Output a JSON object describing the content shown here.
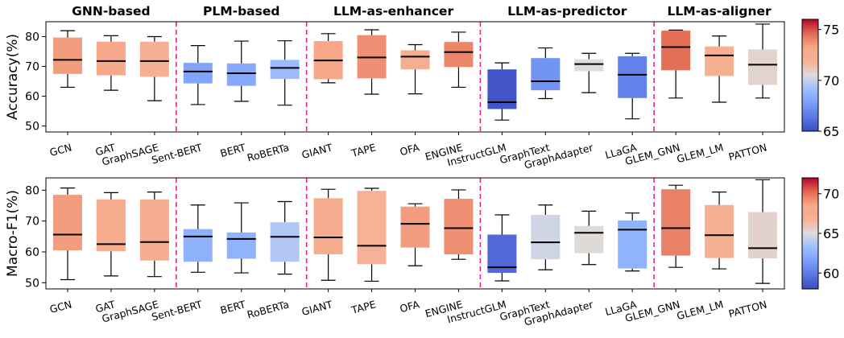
{
  "chart_data": {
    "type": "box",
    "groups": [
      "GNN-based",
      "PLM-based",
      "LLM-as-enhancer",
      "LLM-as-predictor",
      "LLM-as-aligner"
    ],
    "group_sizes": [
      3,
      3,
      4,
      4,
      3
    ],
    "models": [
      "GCN",
      "GAT",
      "GraphSAGE",
      "Sent-BERT",
      "BERT",
      "RoBERTa",
      "GIANT",
      "TAPE",
      "OFA",
      "ENGINE",
      "InstructGLM",
      "GraphText",
      "GraphAdapter",
      "LLaGA",
      "GLEM_GNN",
      "GLEM_LM",
      "PATTON"
    ],
    "panels": [
      {
        "ylabel": "Accuracy(%)",
        "ylim": [
          48,
          85
        ],
        "yticks": [
          50,
          60,
          70,
          80
        ],
        "colorbar": {
          "range": [
            65,
            76
          ],
          "ticks": [
            65,
            70,
            75
          ]
        },
        "boxes": [
          {
            "whislo": 63,
            "q1": 67.5,
            "med": 72.2,
            "q3": 79.7,
            "whishi": 82,
            "color_value": 73.5
          },
          {
            "whislo": 62,
            "q1": 67,
            "med": 71.8,
            "q3": 78.3,
            "whishi": 80.3,
            "color_value": 73
          },
          {
            "whislo": 58.5,
            "q1": 66.5,
            "med": 71.8,
            "q3": 78.3,
            "whishi": 80,
            "color_value": 72
          },
          {
            "whislo": 57.2,
            "q1": 64.3,
            "med": 68.3,
            "q3": 71.2,
            "whishi": 77,
            "color_value": 68
          },
          {
            "whislo": 58.3,
            "q1": 63.5,
            "med": 67.7,
            "q3": 71,
            "whishi": 78.5,
            "color_value": 68.2
          },
          {
            "whislo": 57,
            "q1": 65.8,
            "med": 69.5,
            "q3": 72.2,
            "whishi": 78.6,
            "color_value": 69
          },
          {
            "whislo": 64.5,
            "q1": 65.7,
            "med": 72,
            "q3": 78.5,
            "whishi": 81,
            "color_value": 73.2
          },
          {
            "whislo": 60.7,
            "q1": 66,
            "med": 73,
            "q3": 80.5,
            "whishi": 82.3,
            "color_value": 73.8
          },
          {
            "whislo": 60.8,
            "q1": 69,
            "med": 73.3,
            "q3": 75.4,
            "whishi": 77.3,
            "color_value": 72.3
          },
          {
            "whislo": 63,
            "q1": 69.8,
            "med": 74.8,
            "q3": 78.2,
            "whishi": 81.5,
            "color_value": 74
          },
          {
            "whislo": 52,
            "q1": 55.7,
            "med": 58,
            "q3": 69,
            "whishi": 71.2,
            "color_value": 65.3
          },
          {
            "whislo": 59.2,
            "q1": 62,
            "med": 65,
            "q3": 72.8,
            "whishi": 76.2,
            "color_value": 67.4
          },
          {
            "whislo": 61.2,
            "q1": 68.4,
            "med": 70.8,
            "q3": 72.4,
            "whishi": 74.4,
            "color_value": 70.5
          },
          {
            "whislo": 52.4,
            "q1": 59.4,
            "med": 67.2,
            "q3": 73.4,
            "whishi": 74.4,
            "color_value": 66.8
          },
          {
            "whislo": 59.4,
            "q1": 68.7,
            "med": 76.5,
            "q3": 82,
            "whishi": 82.2,
            "color_value": 74.5
          },
          {
            "whislo": 58,
            "q1": 66.8,
            "med": 73.7,
            "q3": 76.7,
            "whishi": 80.2,
            "color_value": 72.2
          },
          {
            "whislo": 59.4,
            "q1": 63.8,
            "med": 70.6,
            "q3": 75.7,
            "whishi": 84.2,
            "color_value": 70.8
          }
        ]
      },
      {
        "ylabel": "Macro-F1(%)",
        "ylim": [
          48,
          84
        ],
        "yticks": [
          50,
          60,
          70,
          80
        ],
        "colorbar": {
          "range": [
            58,
            72
          ],
          "ticks": [
            60,
            65,
            70
          ]
        },
        "boxes": [
          {
            "whislo": 51,
            "q1": 60.5,
            "med": 65.6,
            "q3": 78.5,
            "whishi": 80.7,
            "color_value": 68.8
          },
          {
            "whislo": 52.2,
            "q1": 60.2,
            "med": 62.5,
            "q3": 77,
            "whishi": 79.2,
            "color_value": 67.7
          },
          {
            "whislo": 52,
            "q1": 57.2,
            "med": 63.2,
            "q3": 77,
            "whishi": 79.4,
            "color_value": 67.5
          },
          {
            "whislo": 53.4,
            "q1": 56.8,
            "med": 65,
            "q3": 67.4,
            "whishi": 75.2,
            "color_value": 62.5
          },
          {
            "whislo": 53.2,
            "q1": 57.8,
            "med": 64.2,
            "q3": 66.3,
            "whishi": 75.9,
            "color_value": 62.6
          },
          {
            "whislo": 52.8,
            "q1": 56.8,
            "med": 64.9,
            "q3": 69.6,
            "whishi": 76.3,
            "color_value": 63.8
          },
          {
            "whislo": 50.8,
            "q1": 59.2,
            "med": 64.7,
            "q3": 77.4,
            "whishi": 80.3,
            "color_value": 67.5
          },
          {
            "whislo": 50.5,
            "q1": 56,
            "med": 62,
            "q3": 79.8,
            "whishi": 80.6,
            "color_value": 66.7
          },
          {
            "whislo": 55.5,
            "q1": 61.4,
            "med": 69.1,
            "q3": 74.7,
            "whishi": 75.6,
            "color_value": 68.8
          },
          {
            "whislo": 57.6,
            "q1": 59.2,
            "med": 67.7,
            "q3": 77.2,
            "whishi": 80.1,
            "color_value": 69.2
          },
          {
            "whislo": 50.6,
            "q1": 53.2,
            "med": 55,
            "q3": 65.6,
            "whishi": 72,
            "color_value": 59.2
          },
          {
            "whislo": 54.2,
            "q1": 57.6,
            "med": 63.1,
            "q3": 72,
            "whishi": 75.2,
            "color_value": 64.6
          },
          {
            "whislo": 55.9,
            "q1": 59.6,
            "med": 66.2,
            "q3": 68.4,
            "whishi": 73.2,
            "color_value": 65.1
          },
          {
            "whislo": 53.8,
            "q1": 54.6,
            "med": 67.2,
            "q3": 70.2,
            "whishi": 72.6,
            "color_value": 62.6
          },
          {
            "whislo": 55,
            "q1": 58.8,
            "med": 67.7,
            "q3": 80.3,
            "whishi": 81.6,
            "color_value": 69.6
          },
          {
            "whislo": 54.5,
            "q1": 58,
            "med": 65.4,
            "q3": 75.2,
            "whishi": 79.4,
            "color_value": 66.8
          },
          {
            "whislo": 49.8,
            "q1": 57.9,
            "med": 61.2,
            "q3": 72.9,
            "whishi": 83.4,
            "color_value": 65.4
          }
        ]
      }
    ],
    "colormap": "coolwarm",
    "separator_color": "#e6268c",
    "grid": false
  }
}
